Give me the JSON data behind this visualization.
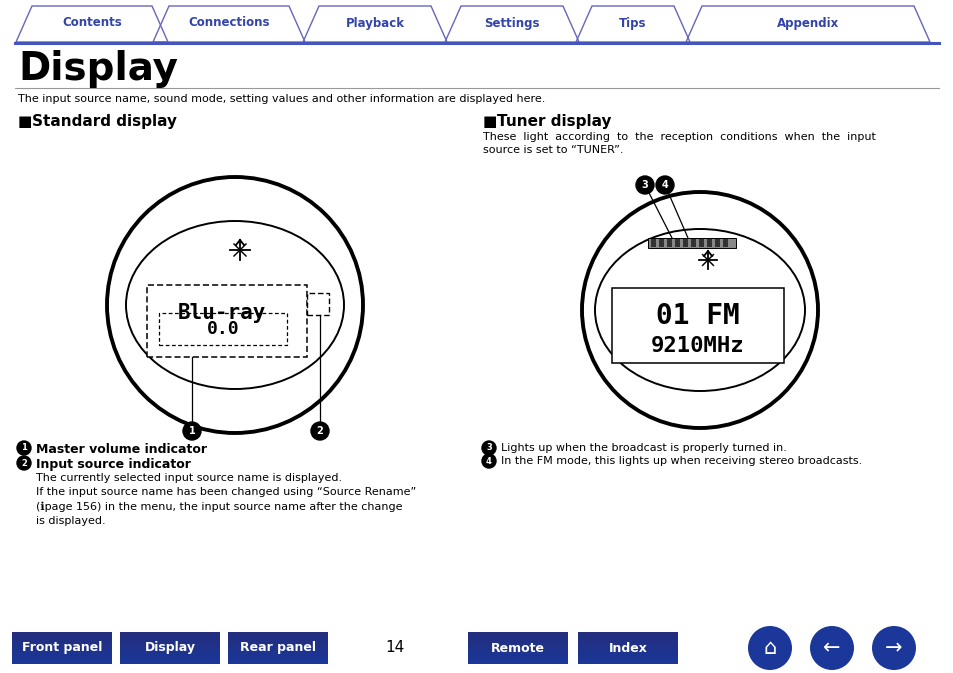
{
  "page_title": "Display",
  "subtitle": "The input source name, sound mode, setting values and other information are displayed here.",
  "tab_labels": [
    "Contents",
    "Connections",
    "Playback",
    "Settings",
    "Tips",
    "Appendix"
  ],
  "tab_border_color": "#6666bb",
  "tab_text_color": "#3344aa",
  "section1_title": "Standard display",
  "section2_title": "Tuner display",
  "tuner_desc_line1": "These  light  according  to  the  reception  conditions  when  the  input",
  "tuner_desc_line2": "source is set to “TUNER”.",
  "display_text1": "Blu-ray",
  "display_text2": "0.0",
  "tuner_text1": "01 FM",
  "tuner_text2": "9210MHz",
  "label1_bold": "Master volume indicator",
  "label2_bold": "Input source indicator",
  "label2_desc": "The currently selected input source name is displayed.\nIf the input source name has been changed using “Source Rename”\n(ℹpage 156) in the menu, the input source name after the change\nis displayed.",
  "label3": "Lights up when the broadcast is properly turned in.",
  "label4": "In the FM mode, this lights up when receiving stereo broadcasts.",
  "bottom_buttons": [
    "Front panel",
    "Display",
    "Rear panel",
    "Remote",
    "Index"
  ],
  "page_number": "14",
  "btn_color": "#1a3799",
  "bg_color": "#ffffff",
  "text_color": "#000000",
  "blue_line_color": "#4455bb",
  "gray_line_color": "#999999"
}
